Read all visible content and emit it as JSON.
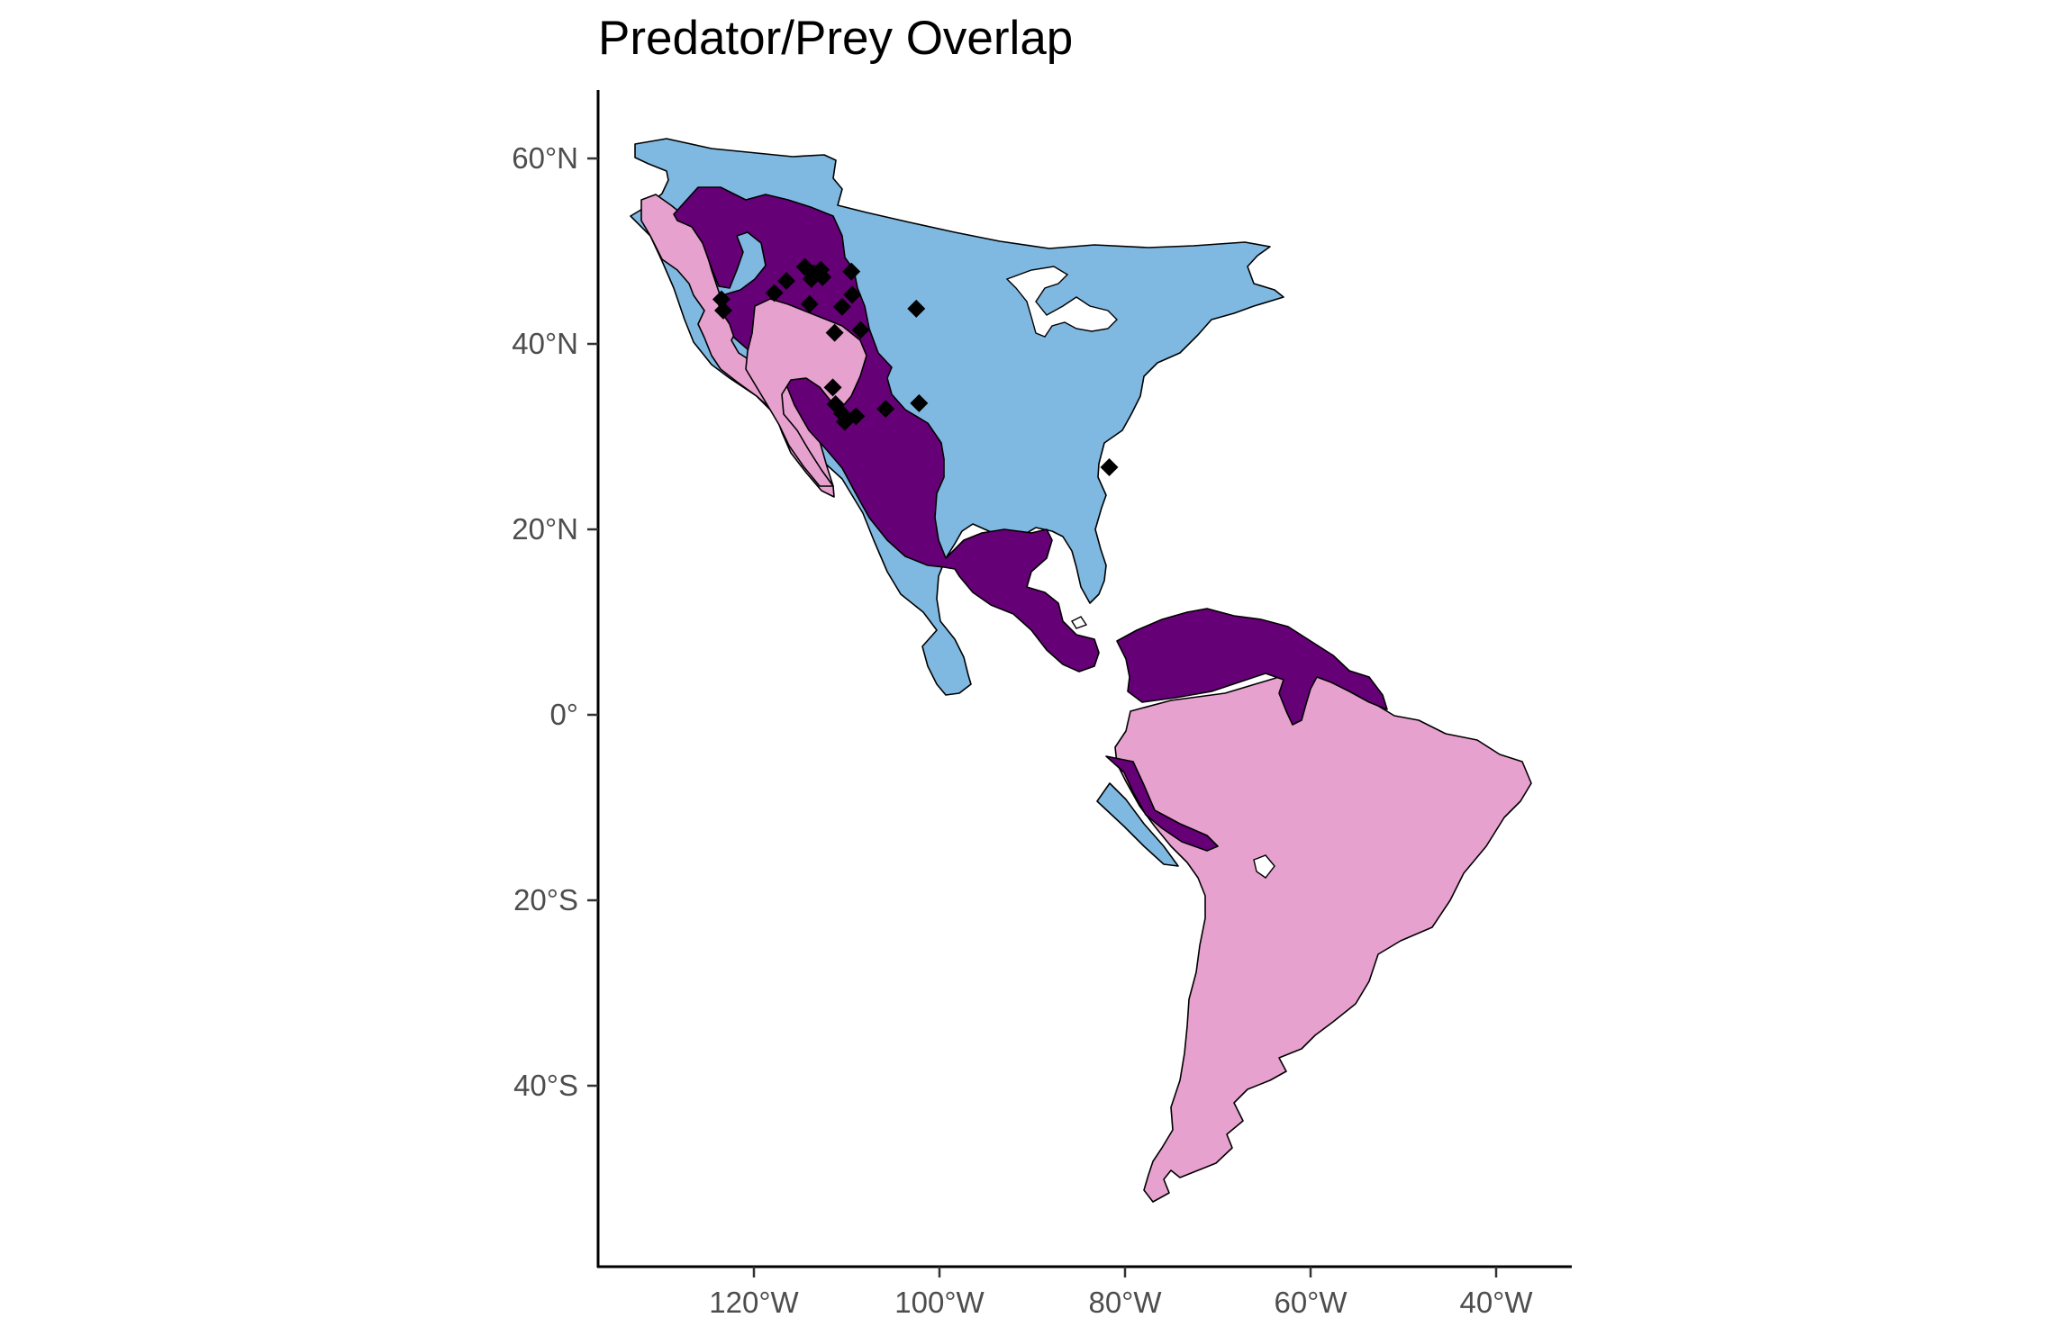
{
  "title": "Predator/Prey Overlap",
  "colors": {
    "prey_range": "#7FB8E0",
    "predator_range": "#E7A1CF",
    "overlap": "#660077",
    "outline": "#000000",
    "points": "#000000"
  },
  "legend": "none",
  "chart_data": {
    "type": "scatter",
    "title": "Predator/Prey Overlap",
    "xlabel": "",
    "ylabel": "",
    "x_ticks": [
      {
        "value": -120,
        "label": "120°W"
      },
      {
        "value": -100,
        "label": "100°W"
      },
      {
        "value": -80,
        "label": "80°W"
      },
      {
        "value": -60,
        "label": "60°W"
      },
      {
        "value": -40,
        "label": "40°W"
      }
    ],
    "y_ticks": [
      {
        "value": 60,
        "label": "60°N"
      },
      {
        "value": 40,
        "label": "40°N"
      },
      {
        "value": 20,
        "label": "20°N"
      },
      {
        "value": 0,
        "label": "0°"
      },
      {
        "value": -20,
        "label": "20°S"
      },
      {
        "value": -40,
        "label": "40°S"
      }
    ],
    "xlim": [
      -135,
      -30
    ],
    "ylim": [
      -59,
      67
    ],
    "grid": false,
    "points": [
      {
        "lon": -123.5,
        "lat": 44.8
      },
      {
        "lon": -123.3,
        "lat": 43.6
      },
      {
        "lon": -116.5,
        "lat": 46.8
      },
      {
        "lon": -117.8,
        "lat": 45.5
      },
      {
        "lon": -114.5,
        "lat": 48.3
      },
      {
        "lon": -113.5,
        "lat": 47.6
      },
      {
        "lon": -112.8,
        "lat": 48.0
      },
      {
        "lon": -112.6,
        "lat": 47.2
      },
      {
        "lon": -113.8,
        "lat": 47.0
      },
      {
        "lon": -109.5,
        "lat": 47.8
      },
      {
        "lon": -114.0,
        "lat": 44.3
      },
      {
        "lon": -110.5,
        "lat": 44.0
      },
      {
        "lon": -109.4,
        "lat": 45.3
      },
      {
        "lon": -108.5,
        "lat": 41.5
      },
      {
        "lon": -111.3,
        "lat": 41.2
      },
      {
        "lon": -102.5,
        "lat": 43.8
      },
      {
        "lon": -111.5,
        "lat": 35.3
      },
      {
        "lon": -111.2,
        "lat": 33.5
      },
      {
        "lon": -110.5,
        "lat": 32.5
      },
      {
        "lon": -110.2,
        "lat": 31.6
      },
      {
        "lon": -109.0,
        "lat": 32.2
      },
      {
        "lon": -105.8,
        "lat": 33.0
      },
      {
        "lon": -102.2,
        "lat": 33.6
      },
      {
        "lon": -81.7,
        "lat": 26.7
      }
    ]
  }
}
